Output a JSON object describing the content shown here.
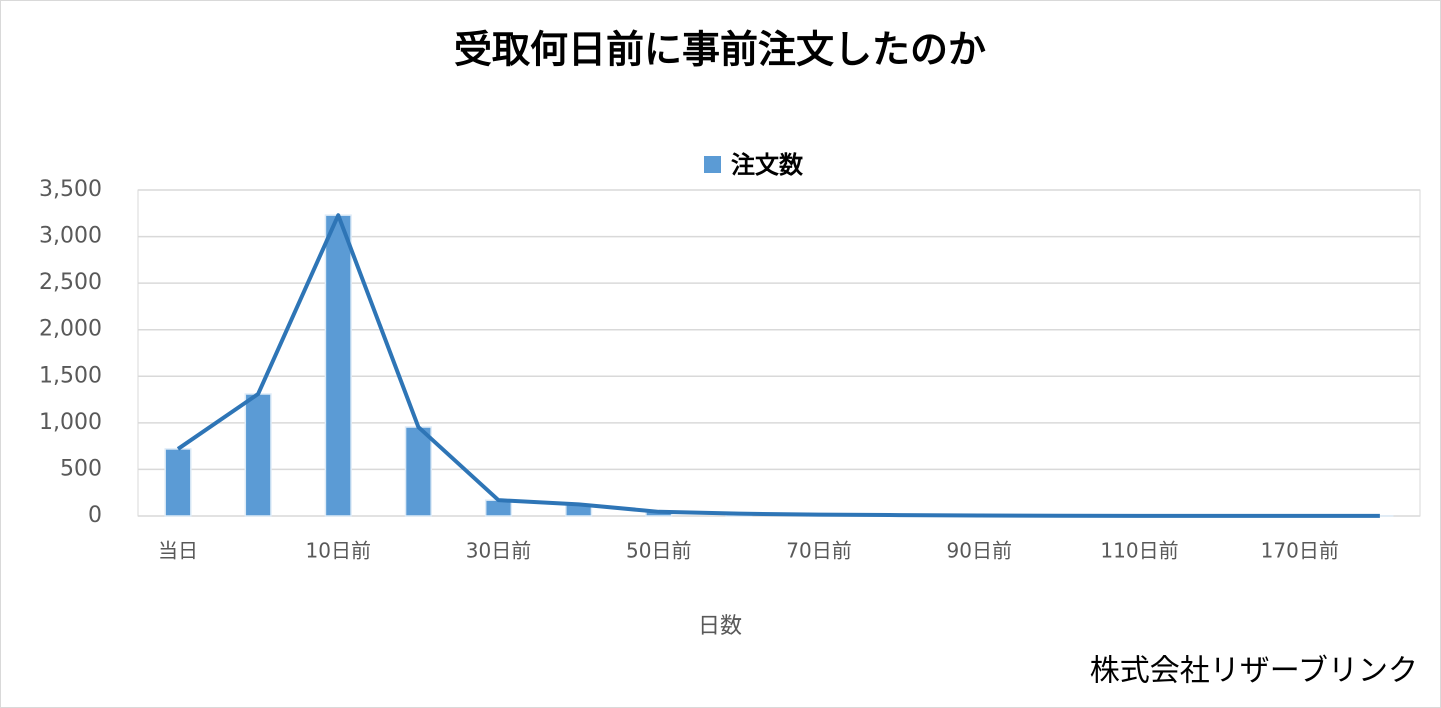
{
  "chart_data": {
    "type": "bar",
    "title": "受取何日前に事前注文したのか",
    "categories": [
      "当日",
      null,
      "10日前",
      null,
      "30日前",
      null,
      "50日前",
      null,
      "70日前",
      null,
      "90日前",
      null,
      "110日前",
      null,
      "170日前",
      null
    ],
    "series": [
      {
        "name": "注文数",
        "color": "#5b9bd5",
        "values": [
          720,
          1310,
          3230,
          955,
          170,
          125,
          45,
          25,
          15,
          10,
          5,
          3,
          2,
          2,
          1,
          1
        ]
      }
    ],
    "line_color": "#2e75b6",
    "x_label": "日数",
    "ylim": [
      0,
      3500
    ],
    "yticks": [
      0,
      500,
      {
        "value": 1000,
        "label": "1,000"
      },
      {
        "value": 1500,
        "label": "1,500"
      },
      {
        "value": 2000,
        "label": "2,000"
      },
      {
        "value": 2500,
        "label": "2,500"
      },
      {
        "value": 3000,
        "label": "3,000"
      },
      {
        "value": 3500,
        "label": "3,500"
      }
    ],
    "grid": true,
    "legend": "top"
  },
  "footer": "株式会社リザーブリンク"
}
